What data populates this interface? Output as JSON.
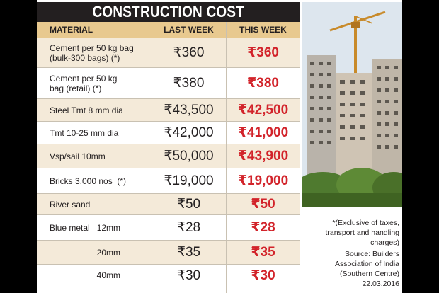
{
  "title": "CONSTRUCTION COST",
  "columns": {
    "material": "MATERIAL",
    "last_week": "LAST WEEK",
    "this_week": "THIS WEEK"
  },
  "rows": [
    {
      "material": "Cement per 50 kg bag\n(bulk-300 bags) (*)",
      "last_week": "₹360",
      "this_week": "₹360"
    },
    {
      "material": "Cement per 50 kg\nbag (retail) (*)",
      "last_week": "₹380",
      "this_week": "₹380"
    },
    {
      "material": "Steel Tmt 8 mm dia",
      "last_week": "₹43,500",
      "this_week": "₹42,500"
    },
    {
      "material": "Tmt 10-25 mm dia",
      "last_week": "₹42,000",
      "this_week": "₹41,000"
    },
    {
      "material": "Vsp/sail 10mm",
      "last_week": "₹50,000",
      "this_week": "₹43,900"
    },
    {
      "material": "Bricks 3,000 nos  (*)",
      "last_week": "₹19,000",
      "this_week": "₹19,000"
    },
    {
      "material": "River sand",
      "last_week": "₹50",
      "this_week": "₹50"
    },
    {
      "material": "Blue metal   12mm",
      "last_week": "₹28",
      "this_week": "₹28"
    },
    {
      "material": "                    20mm",
      "last_week": "₹35",
      "this_week": "₹35"
    },
    {
      "material": "                    40mm",
      "last_week": "₹30",
      "this_week": "₹30"
    }
  ],
  "footnote": "*(Exclusive of taxes, transport and handling charges)",
  "source_lines": [
    "Source: Builders",
    "Association of India",
    "(Southern Centre)",
    "22.03.2016"
  ],
  "colors": {
    "title_bg": "#231f20",
    "header_bg": "#e8c98f",
    "row_shade": "#f4ead9",
    "accent_red": "#d2232a"
  }
}
